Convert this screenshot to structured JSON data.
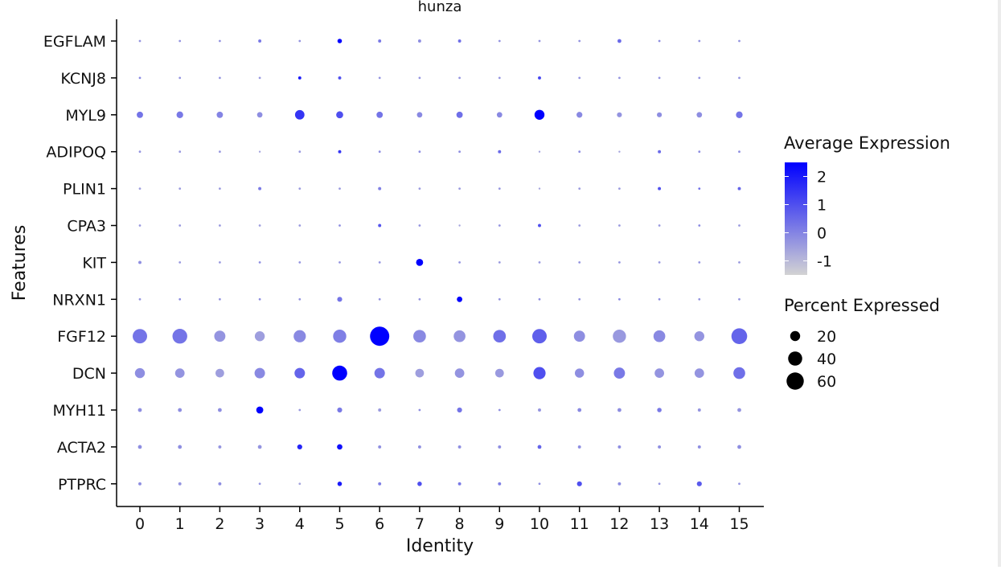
{
  "chart_data": {
    "type": "scatter",
    "title": "hunza",
    "xlabel": "Identity",
    "ylabel": "Features",
    "categories": [
      "0",
      "1",
      "2",
      "3",
      "4",
      "5",
      "6",
      "7",
      "8",
      "9",
      "10",
      "11",
      "12",
      "13",
      "14",
      "15"
    ],
    "features": [
      "EGFLAM",
      "KCNJ8",
      "MYL9",
      "ADIPOQ",
      "PLIN1",
      "CPA3",
      "KIT",
      "NRXN1",
      "FGF12",
      "DCN",
      "MYH11",
      "ACTA2",
      "PTPRC"
    ],
    "avg_expression": [
      [
        -0.3,
        -0.3,
        -0.3,
        0.2,
        -0.3,
        2.5,
        0.2,
        -0.2,
        0.4,
        -0.3,
        -0.3,
        -0.3,
        0.5,
        -0.2,
        -0.3,
        -0.3
      ],
      [
        -0.1,
        -0.3,
        -0.3,
        -0.4,
        2.0,
        1.0,
        -0.3,
        -0.3,
        -0.3,
        -0.3,
        1.2,
        -0.3,
        -0.3,
        -0.3,
        -0.3,
        -0.3
      ],
      [
        0.3,
        0.2,
        0.0,
        -0.2,
        1.5,
        1.0,
        0.3,
        -0.1,
        0.4,
        -0.1,
        2.5,
        -0.1,
        -0.3,
        -0.2,
        -0.2,
        0.3
      ],
      [
        -0.3,
        -0.4,
        -0.4,
        -0.6,
        -0.4,
        1.5,
        -0.2,
        -0.2,
        -0.2,
        0.5,
        -0.6,
        -0.2,
        -0.6,
        0.5,
        -0.2,
        -0.2
      ],
      [
        -0.5,
        -0.4,
        -0.4,
        0.2,
        -0.4,
        -0.4,
        0.1,
        -0.4,
        -0.4,
        -0.3,
        -0.6,
        -0.4,
        -0.4,
        1.0,
        0.4,
        0.6
      ],
      [
        -0.4,
        -0.4,
        -0.4,
        -0.5,
        -0.4,
        -0.2,
        0.9,
        -0.3,
        -0.6,
        -0.3,
        1.0,
        -0.4,
        -0.4,
        -0.4,
        -0.1,
        -0.4
      ],
      [
        -0.2,
        -0.4,
        -0.4,
        -0.2,
        -0.3,
        -0.3,
        -0.3,
        2.5,
        -0.3,
        -0.4,
        -0.4,
        -0.3,
        -0.3,
        -0.4,
        -0.3,
        -0.4
      ],
      [
        -0.3,
        -0.2,
        -0.3,
        -0.2,
        -0.3,
        0.3,
        -0.3,
        -0.3,
        2.5,
        -0.3,
        -0.2,
        -0.3,
        -0.1,
        -0.2,
        -0.3,
        -0.3
      ],
      [
        0.3,
        0.3,
        -0.3,
        -0.5,
        -0.1,
        0.1,
        2.5,
        -0.1,
        -0.3,
        0.4,
        0.7,
        -0.2,
        -0.4,
        -0.1,
        -0.3,
        0.6
      ],
      [
        -0.2,
        -0.3,
        -0.5,
        -0.1,
        0.6,
        2.5,
        0.3,
        -0.5,
        -0.3,
        -0.4,
        1.0,
        -0.2,
        0.2,
        -0.3,
        -0.3,
        0.4
      ],
      [
        -0.2,
        -0.2,
        -0.2,
        2.5,
        -0.4,
        0.2,
        -0.4,
        -0.2,
        0.3,
        -0.2,
        -0.3,
        -0.1,
        -0.2,
        0.2,
        -0.3,
        -0.3
      ],
      [
        -0.2,
        -0.2,
        -0.3,
        -0.3,
        1.8,
        2.2,
        -0.2,
        -0.2,
        -0.2,
        -0.2,
        0.6,
        -0.2,
        -0.2,
        -0.2,
        -0.2,
        -0.2
      ],
      [
        -0.2,
        -0.3,
        -0.2,
        -0.3,
        -0.6,
        2.0,
        0.1,
        1.0,
        0.2,
        0.1,
        -0.2,
        1.0,
        -0.2,
        -0.3,
        0.8,
        -0.3
      ]
    ],
    "pct_expressed": [
      [
        1,
        1,
        1,
        2,
        1,
        4,
        2,
        2,
        2,
        1,
        1,
        1,
        3,
        1,
        1,
        1
      ],
      [
        1,
        1,
        1,
        1,
        2,
        2,
        1,
        1,
        1,
        1,
        2,
        1,
        1,
        1,
        1,
        1
      ],
      [
        8,
        9,
        8,
        6,
        18,
        10,
        8,
        6,
        8,
        6,
        20,
        7,
        5,
        5,
        6,
        9
      ],
      [
        1,
        1,
        1,
        0.5,
        1,
        2,
        1,
        1,
        1,
        2,
        0.5,
        1,
        0.5,
        2,
        1,
        1
      ],
      [
        1,
        1,
        1,
        2,
        1,
        1,
        2,
        1,
        1,
        1,
        0.5,
        1,
        1,
        2,
        1,
        2
      ],
      [
        1,
        1,
        1,
        1,
        1,
        1,
        2,
        1,
        0.5,
        1,
        2,
        1,
        1,
        1,
        1,
        1
      ],
      [
        2,
        1,
        1,
        1,
        1,
        1,
        1,
        10,
        1,
        1,
        1,
        1,
        1,
        1,
        1,
        1
      ],
      [
        1,
        1,
        1,
        1,
        1,
        5,
        1,
        1,
        6,
        1,
        1,
        1,
        1,
        1,
        1,
        1
      ],
      [
        42,
        44,
        25,
        20,
        30,
        35,
        75,
        32,
        28,
        32,
        42,
        25,
        35,
        28,
        20,
        50
      ],
      [
        20,
        18,
        15,
        22,
        22,
        45,
        22,
        15,
        18,
        15,
        30,
        17,
        25,
        18,
        18,
        28
      ],
      [
        3,
        3,
        3,
        10,
        1,
        5,
        2,
        1,
        5,
        1,
        2,
        3,
        3,
        4,
        2,
        3
      ],
      [
        3,
        3,
        2,
        3,
        5,
        6,
        2,
        2,
        2,
        2,
        3,
        2,
        2,
        2,
        2,
        3
      ],
      [
        2,
        2,
        2,
        1,
        1,
        4,
        2,
        4,
        2,
        2,
        1,
        5,
        2,
        1,
        5,
        1
      ]
    ],
    "color_scale": {
      "low": "#d3d3d3",
      "high": "#0000ff",
      "min": -1.5,
      "max": 2.5
    },
    "size_scale": {
      "max_pct": 75
    },
    "legend": {
      "color_title": "Average Expression",
      "color_ticks": [
        2,
        1,
        0,
        -1
      ],
      "size_title": "Percent Expressed",
      "size_values": [
        20,
        40,
        60
      ]
    },
    "grid": false,
    "legend_position": "right"
  }
}
